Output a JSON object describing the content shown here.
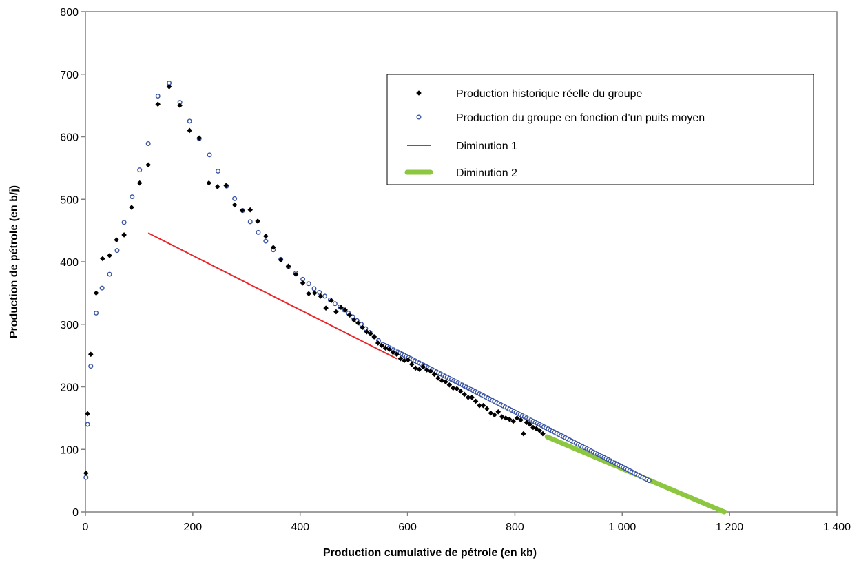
{
  "chart_data": {
    "type": "scatter",
    "xlabel": "Production cumulative de pétrole (en kb)",
    "ylabel": "Production de pétrole (en b/j)",
    "xlim": [
      0,
      1400
    ],
    "ylim": [
      0,
      800
    ],
    "xticks": [
      0,
      200,
      400,
      600,
      800,
      1000,
      1200,
      1400
    ],
    "xtick_labels": [
      "0",
      "200",
      "400",
      "600",
      "800",
      "1 000",
      "1 200",
      "1 400"
    ],
    "yticks": [
      0,
      100,
      200,
      300,
      400,
      500,
      600,
      700,
      800
    ],
    "ytick_labels": [
      "0",
      "100",
      "200",
      "300",
      "400",
      "500",
      "600",
      "700",
      "800"
    ],
    "grid": false,
    "legend_position": "top-right",
    "series": [
      {
        "name": "Production historique réelle du groupe",
        "marker": "diamond",
        "color": "#000000",
        "points": [
          [
            1,
            62
          ],
          [
            4,
            157
          ],
          [
            10,
            252
          ],
          [
            20,
            350
          ],
          [
            32,
            405
          ],
          [
            45,
            410
          ],
          [
            58,
            435
          ],
          [
            72,
            443
          ],
          [
            86,
            487
          ],
          [
            101,
            526
          ],
          [
            117,
            555
          ],
          [
            135,
            652
          ],
          [
            156,
            680
          ],
          [
            176,
            650
          ],
          [
            194,
            610
          ],
          [
            212,
            598
          ],
          [
            230,
            526
          ],
          [
            246,
            520
          ],
          [
            262,
            522
          ],
          [
            278,
            491
          ],
          [
            292,
            482
          ],
          [
            307,
            483
          ],
          [
            321,
            465
          ],
          [
            336,
            441
          ],
          [
            350,
            423
          ],
          [
            364,
            403
          ],
          [
            378,
            393
          ],
          [
            392,
            380
          ],
          [
            405,
            366
          ],
          [
            416,
            349
          ],
          [
            427,
            350
          ],
          [
            438,
            345
          ],
          [
            448,
            326
          ],
          [
            458,
            338
          ],
          [
            467,
            320
          ],
          [
            476,
            327
          ],
          [
            484,
            323
          ],
          [
            492,
            315
          ],
          [
            500,
            307
          ],
          [
            508,
            302
          ],
          [
            516,
            295
          ],
          [
            524,
            288
          ],
          [
            531,
            285
          ],
          [
            538,
            280
          ],
          [
            545,
            270
          ],
          [
            552,
            266
          ],
          [
            559,
            262
          ],
          [
            566,
            260
          ],
          [
            573,
            255
          ],
          [
            580,
            252
          ],
          [
            587,
            245
          ],
          [
            594,
            242
          ],
          [
            601,
            243
          ],
          [
            608,
            236
          ],
          [
            615,
            230
          ],
          [
            622,
            228
          ],
          [
            629,
            232
          ],
          [
            636,
            227
          ],
          [
            643,
            225
          ],
          [
            650,
            220
          ],
          [
            657,
            214
          ],
          [
            664,
            210
          ],
          [
            671,
            208
          ],
          [
            678,
            203
          ],
          [
            685,
            198
          ],
          [
            692,
            197
          ],
          [
            699,
            193
          ],
          [
            706,
            188
          ],
          [
            713,
            183
          ],
          [
            720,
            183
          ],
          [
            727,
            177
          ],
          [
            734,
            170
          ],
          [
            741,
            170
          ],
          [
            748,
            165
          ],
          [
            755,
            158
          ],
          [
            762,
            155
          ],
          [
            769,
            160
          ],
          [
            776,
            152
          ],
          [
            783,
            150
          ],
          [
            790,
            148
          ],
          [
            797,
            145
          ],
          [
            804,
            150
          ],
          [
            811,
            147
          ],
          [
            816,
            125
          ],
          [
            822,
            143
          ],
          [
            828,
            140
          ],
          [
            834,
            135
          ],
          [
            840,
            133
          ],
          [
            846,
            130
          ],
          [
            852,
            125
          ]
        ]
      },
      {
        "name": "Production du groupe en fonction d’un puits moyen",
        "marker": "circle",
        "color": "#3a55a3",
        "points": [
          [
            1,
            55
          ],
          [
            4,
            140
          ],
          [
            10,
            233
          ],
          [
            20,
            318
          ],
          [
            31,
            358
          ],
          [
            45,
            380
          ],
          [
            59,
            418
          ],
          [
            72,
            463
          ],
          [
            87,
            504
          ],
          [
            101,
            547
          ],
          [
            117,
            589
          ],
          [
            135,
            665
          ],
          [
            156,
            686
          ],
          [
            176,
            655
          ],
          [
            194,
            625
          ],
          [
            212,
            597
          ],
          [
            231,
            571
          ],
          [
            247,
            545
          ],
          [
            263,
            521
          ],
          [
            278,
            501
          ],
          [
            293,
            482
          ],
          [
            307,
            464
          ],
          [
            322,
            447
          ],
          [
            336,
            433
          ],
          [
            350,
            419
          ],
          [
            364,
            404
          ],
          [
            378,
            392
          ],
          [
            392,
            382
          ],
          [
            405,
            372
          ],
          [
            416,
            365
          ],
          [
            426,
            357
          ],
          [
            436,
            351
          ],
          [
            446,
            345
          ],
          [
            456,
            339
          ],
          [
            465,
            333
          ],
          [
            474,
            328
          ],
          [
            482,
            323
          ],
          [
            490,
            318
          ],
          [
            498,
            312
          ],
          [
            506,
            306
          ],
          [
            514,
            300
          ],
          [
            522,
            293
          ],
          [
            530,
            287
          ],
          [
            538,
            280
          ],
          [
            546,
            274
          ],
          [
            554,
            268
          ]
        ],
        "trend_start": [
          554,
          268
        ],
        "trend_end": [
          1050,
          50
        ],
        "trend_step": 4
      },
      {
        "name": "Diminution 1",
        "type": "line",
        "color": "#e8262a",
        "points": [
          [
            117,
            446
          ],
          [
            580,
            245
          ]
        ]
      },
      {
        "name": "Diminution 2",
        "type": "line",
        "color": "#8dc63f",
        "points": [
          [
            860,
            120
          ],
          [
            1190,
            0
          ]
        ]
      }
    ]
  }
}
